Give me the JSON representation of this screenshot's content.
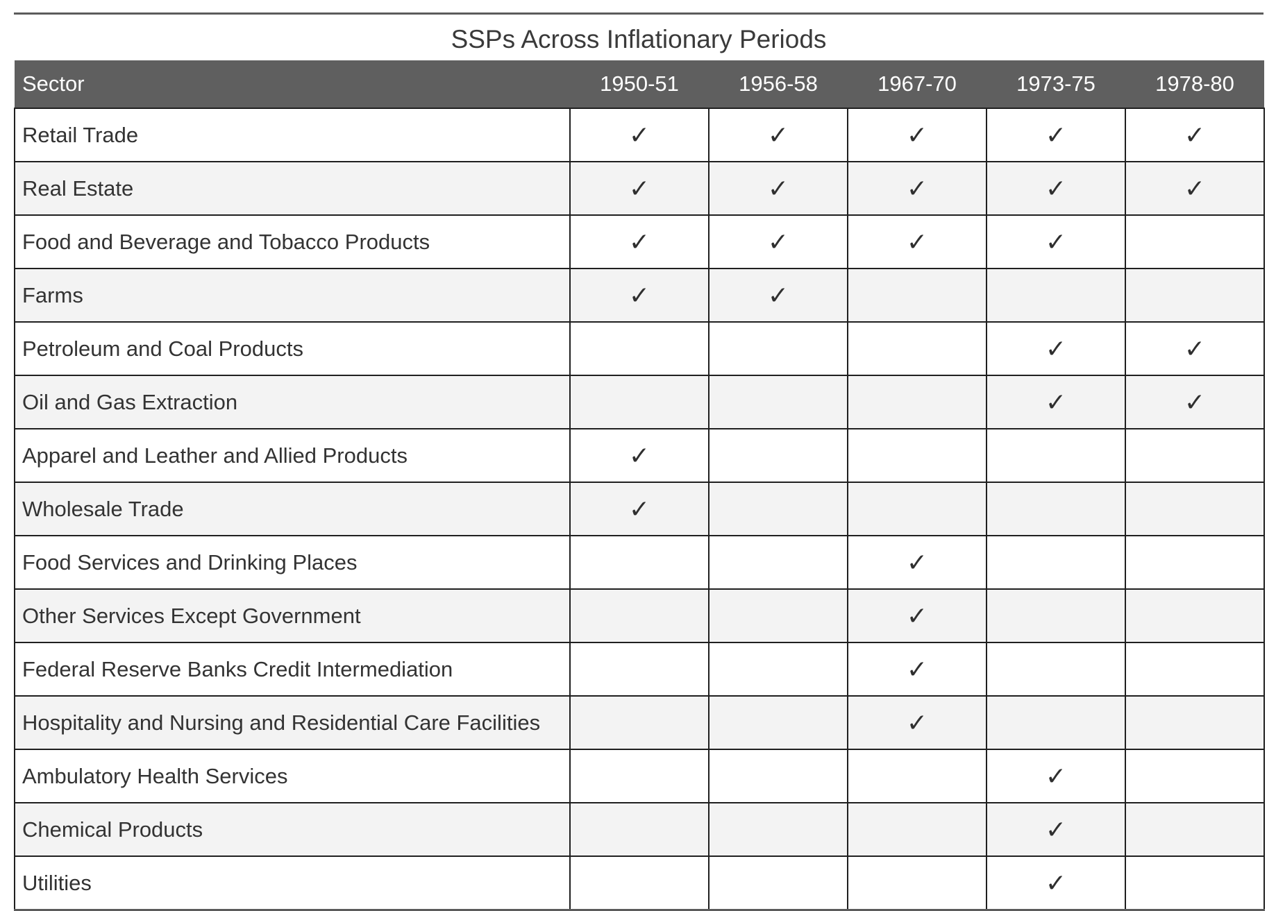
{
  "table": {
    "title": "SSPs Across Inflationary Periods",
    "columns": [
      "Sector",
      "1950-51",
      "1956-58",
      "1967-70",
      "1973-75",
      "1978-80"
    ],
    "check_glyph": "✓",
    "rows": [
      {
        "sector": "Retail Trade",
        "marks": [
          true,
          true,
          true,
          true,
          true
        ]
      },
      {
        "sector": "Real Estate",
        "marks": [
          true,
          true,
          true,
          true,
          true
        ]
      },
      {
        "sector": "Food and Beverage and Tobacco Products",
        "marks": [
          true,
          true,
          true,
          true,
          false
        ]
      },
      {
        "sector": "Farms",
        "marks": [
          true,
          true,
          false,
          false,
          false
        ]
      },
      {
        "sector": "Petroleum and Coal Products",
        "marks": [
          false,
          false,
          false,
          true,
          true
        ]
      },
      {
        "sector": "Oil and Gas Extraction",
        "marks": [
          false,
          false,
          false,
          true,
          true
        ]
      },
      {
        "sector": "Apparel and Leather and Allied Products",
        "marks": [
          true,
          false,
          false,
          false,
          false
        ]
      },
      {
        "sector": "Wholesale Trade",
        "marks": [
          true,
          false,
          false,
          false,
          false
        ]
      },
      {
        "sector": "Food Services and Drinking Places",
        "marks": [
          false,
          false,
          true,
          false,
          false
        ]
      },
      {
        "sector": "Other Services Except Government",
        "marks": [
          false,
          false,
          true,
          false,
          false
        ]
      },
      {
        "sector": "Federal Reserve Banks Credit Intermediation",
        "marks": [
          false,
          false,
          true,
          false,
          false
        ]
      },
      {
        "sector": "Hospitality and Nursing and Residential Care Facilities",
        "marks": [
          false,
          false,
          true,
          false,
          false
        ]
      },
      {
        "sector": "Ambulatory Health Services",
        "marks": [
          false,
          false,
          false,
          true,
          false
        ]
      },
      {
        "sector": "Chemical Products",
        "marks": [
          false,
          false,
          false,
          true,
          false
        ]
      },
      {
        "sector": "Utilities",
        "marks": [
          false,
          false,
          false,
          true,
          false
        ]
      }
    ]
  }
}
